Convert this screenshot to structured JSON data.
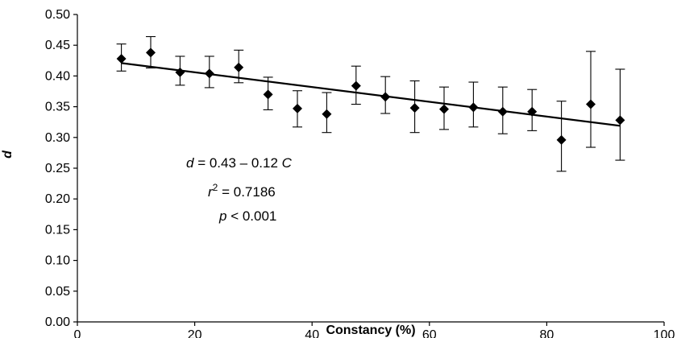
{
  "chart_data": {
    "type": "scatter",
    "title": "",
    "xlabel": "Constancy (%)",
    "ylabel": "d",
    "xlim": [
      0,
      100
    ],
    "ylim": [
      0,
      0.5
    ],
    "x_ticks": [
      "0",
      "20",
      "40",
      "60",
      "80",
      "100"
    ],
    "y_ticks": [
      "0.00",
      "0.05",
      "0.10",
      "0.15",
      "0.20",
      "0.25",
      "0.30",
      "0.35",
      "0.40",
      "0.45",
      "0.50"
    ],
    "grid": false,
    "legend": "none",
    "marker": "diamond",
    "color": "#000000",
    "points": [
      {
        "x": 7.5,
        "y": 0.428,
        "lo": 0.408,
        "hi": 0.452
      },
      {
        "x": 12.5,
        "y": 0.438,
        "lo": 0.413,
        "hi": 0.464
      },
      {
        "x": 17.5,
        "y": 0.406,
        "lo": 0.385,
        "hi": 0.432
      },
      {
        "x": 22.5,
        "y": 0.404,
        "lo": 0.381,
        "hi": 0.432
      },
      {
        "x": 27.5,
        "y": 0.414,
        "lo": 0.389,
        "hi": 0.442
      },
      {
        "x": 32.5,
        "y": 0.37,
        "lo": 0.345,
        "hi": 0.398
      },
      {
        "x": 37.5,
        "y": 0.347,
        "lo": 0.317,
        "hi": 0.376
      },
      {
        "x": 42.5,
        "y": 0.338,
        "lo": 0.308,
        "hi": 0.373
      },
      {
        "x": 47.5,
        "y": 0.384,
        "lo": 0.354,
        "hi": 0.416
      },
      {
        "x": 52.5,
        "y": 0.366,
        "lo": 0.339,
        "hi": 0.399
      },
      {
        "x": 57.5,
        "y": 0.348,
        "lo": 0.308,
        "hi": 0.392
      },
      {
        "x": 62.5,
        "y": 0.346,
        "lo": 0.313,
        "hi": 0.382
      },
      {
        "x": 67.5,
        "y": 0.349,
        "lo": 0.317,
        "hi": 0.39
      },
      {
        "x": 72.5,
        "y": 0.342,
        "lo": 0.306,
        "hi": 0.382
      },
      {
        "x": 77.5,
        "y": 0.342,
        "lo": 0.311,
        "hi": 0.378
      },
      {
        "x": 82.5,
        "y": 0.296,
        "lo": 0.245,
        "hi": 0.359
      },
      {
        "x": 87.5,
        "y": 0.354,
        "lo": 0.284,
        "hi": 0.44
      },
      {
        "x": 92.5,
        "y": 0.328,
        "lo": 0.263,
        "hi": 0.411
      }
    ],
    "trendline": {
      "intercept": 0.43,
      "slope": -0.0012,
      "x_range": [
        7.5,
        92.5
      ]
    },
    "annotations": {
      "equation": {
        "lhs": "d",
        "mid": " = 0.43 – 0.12 ",
        "rhs": "C"
      },
      "r2": {
        "sym": "r",
        "sup": "2",
        "val": " = 0.7186"
      },
      "p": {
        "sym": "p",
        "val": " < 0.001"
      }
    }
  }
}
